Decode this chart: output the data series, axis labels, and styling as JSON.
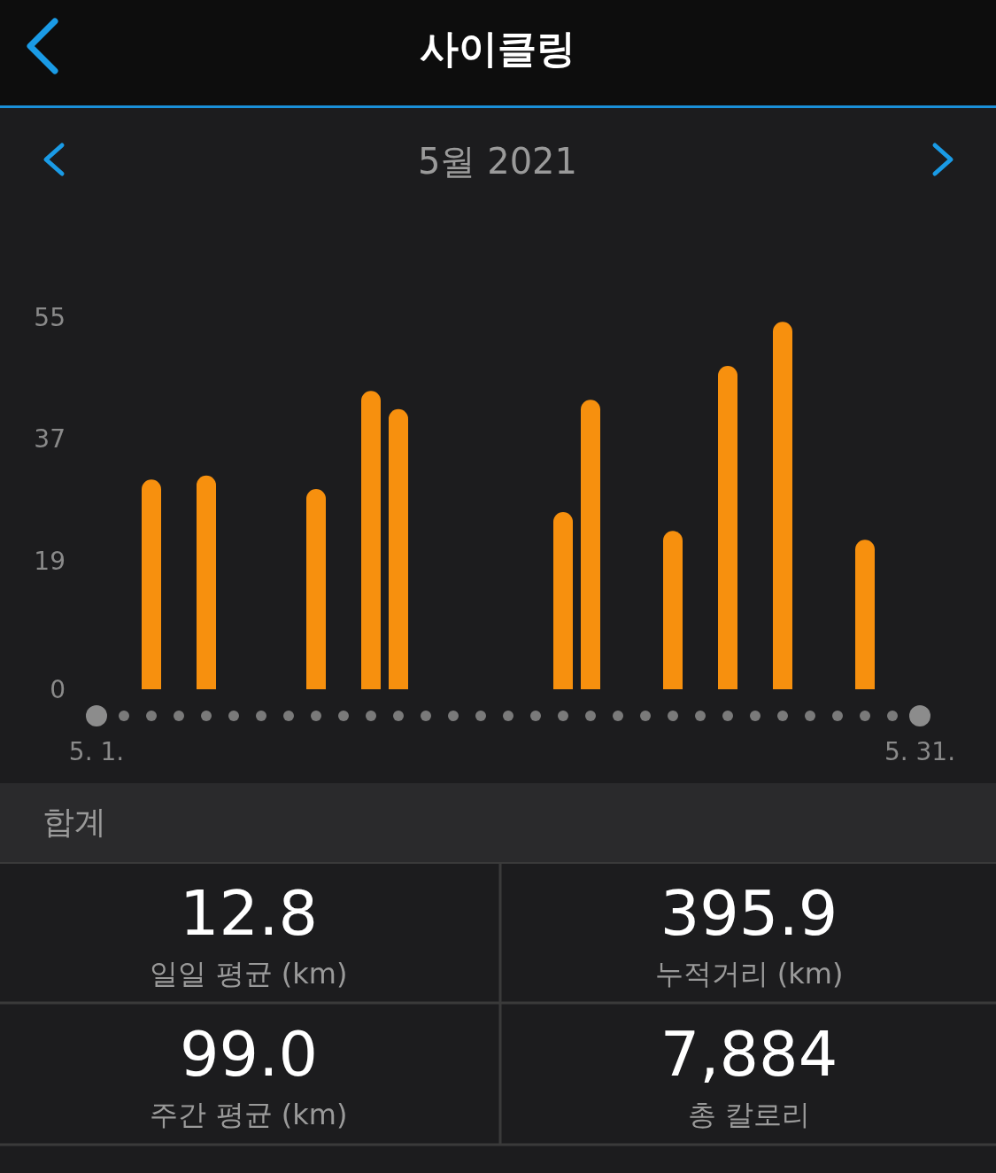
{
  "chart_data": {
    "type": "bar",
    "title": "사이클링",
    "subtitle": "5월 2021",
    "categories": [
      "5. 1.",
      null,
      null,
      null,
      null,
      null,
      null,
      null,
      null,
      null,
      null,
      null,
      null,
      null,
      null,
      null,
      null,
      null,
      null,
      null,
      null,
      null,
      null,
      null,
      null,
      null,
      null,
      null,
      null,
      null,
      "5. 31."
    ],
    "values": [
      null,
      null,
      31,
      null,
      31.6,
      null,
      null,
      null,
      29.6,
      null,
      44.1,
      41.4,
      null,
      null,
      null,
      null,
      null,
      26.2,
      42.8,
      null,
      null,
      23.4,
      null,
      47.8,
      null,
      54.3,
      null,
      null,
      22.1,
      null,
      null
    ],
    "color": "#f7900e",
    "ylim": [
      0,
      55
    ],
    "yticks": [
      0,
      19,
      37,
      55
    ],
    "grid": false,
    "annotations": [
      "합계",
      "12.8",
      "일일 평균 (km)",
      "395.9",
      "누적거리 (km)",
      "99.0",
      "주간 평균 (km)",
      "7,884",
      "총 칼로리"
    ]
  }
}
